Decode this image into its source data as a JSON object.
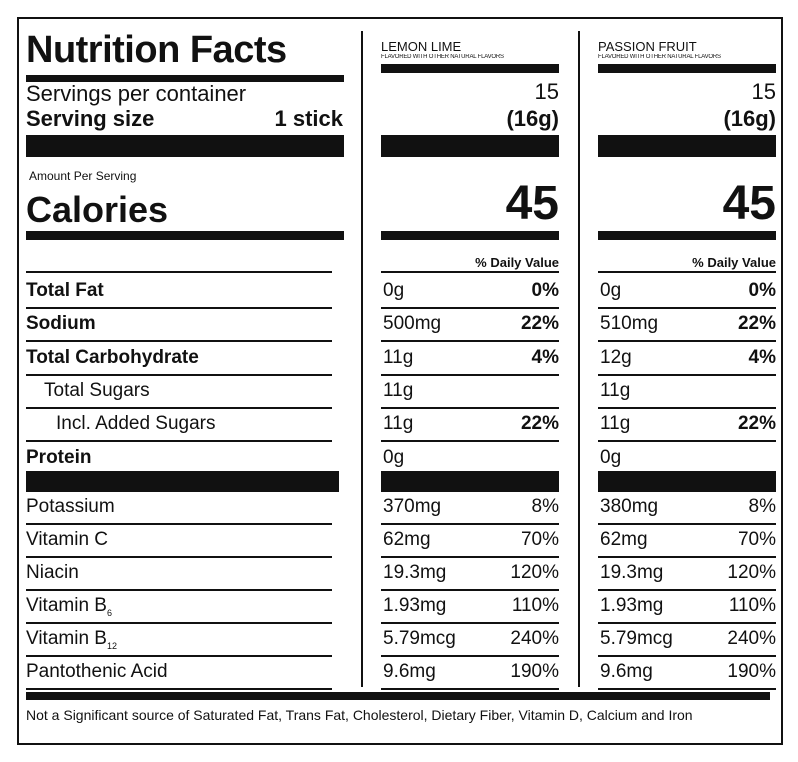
{
  "title": "Nutrition Facts",
  "servings_per_container_label": "Servings per container",
  "serving_size_label": "Serving size",
  "serving_size_value": "1 stick",
  "amount_per_serving": "Amount Per Serving",
  "calories_label": "Calories",
  "daily_value_header": "% Daily Value",
  "flavors": [
    {
      "name": "LEMON LIME",
      "subtitle": "FLAVORED WITH OTHER NATURAL FLAVORS",
      "servings": "15",
      "serving_size": "(16g)",
      "calories": "45",
      "amounts": [
        "0g",
        "500mg",
        "11g",
        "11g",
        "11g",
        "0g",
        "370mg",
        "62mg",
        "19.3mg",
        "1.93mg",
        "5.79mcg",
        "9.6mg"
      ],
      "dv": [
        "0%",
        "22%",
        "4%",
        "",
        "22%",
        "",
        "8%",
        "70%",
        "120%",
        "110%",
        "240%",
        "190%"
      ]
    },
    {
      "name": "PASSION FRUIT",
      "subtitle": "FLAVORED WITH OTHER NATURAL FLAVORS",
      "servings": "15",
      "serving_size": "(16g)",
      "calories": "45",
      "amounts": [
        "0g",
        "510mg",
        "12g",
        "11g",
        "11g",
        "0g",
        "380mg",
        "62mg",
        "19.3mg",
        "1.93mg",
        "5.79mcg",
        "9.6mg"
      ],
      "dv": [
        "0%",
        "22%",
        "4%",
        "",
        "22%",
        "",
        "8%",
        "70%",
        "120%",
        "110%",
        "240%",
        "190%"
      ]
    }
  ],
  "nutrients": [
    {
      "name": "Total Fat"
    },
    {
      "name": "Sodium"
    },
    {
      "name": "Total Carbohydrate"
    },
    {
      "name": "Total Sugars"
    },
    {
      "name": "Incl. Added Sugars"
    },
    {
      "name": "Protein"
    },
    {
      "name": "Potassium"
    },
    {
      "name": "Vitamin C"
    },
    {
      "name": "Niacin"
    },
    {
      "name": "Vitamin B",
      "sub": "6"
    },
    {
      "name": "Vitamin B",
      "sub": "12"
    },
    {
      "name": "Pantothenic Acid"
    }
  ],
  "footnote": "Not a Significant source of Saturated Fat, Trans Fat, Cholesterol, Dietary Fiber, Vitamin D, Calcium and Iron"
}
